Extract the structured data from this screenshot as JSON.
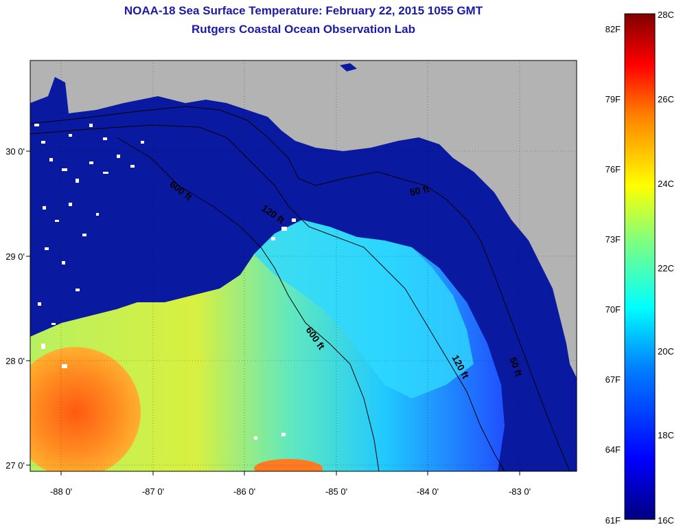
{
  "titles": {
    "line1": "NOAA-18 Sea Surface Temperature:  February 22, 2015 1055 GMT",
    "line2": "Rutgers Coastal Ocean Observation Lab"
  },
  "map": {
    "lon_range": [
      -88.35,
      -82.4
    ],
    "lat_range": [
      26.95,
      30.85
    ],
    "lon_ticks": [
      {
        "value": -88,
        "label": "-88 0'"
      },
      {
        "value": -87,
        "label": "-87 0'"
      },
      {
        "value": -86,
        "label": "-86 0'"
      },
      {
        "value": -85,
        "label": "-85 0'"
      },
      {
        "value": -84,
        "label": "-84 0'"
      },
      {
        "value": -83,
        "label": "-83 0'"
      }
    ],
    "lat_ticks": [
      {
        "value": 30,
        "label": "30 0'"
      },
      {
        "value": 29,
        "label": "29 0'"
      },
      {
        "value": 28,
        "label": "28 0'"
      },
      {
        "value": 27,
        "label": "27 0'"
      }
    ],
    "contour_labels": [
      "600 ft",
      "120 ft",
      "50 ft",
      "600 ft",
      "120 ft",
      "50 ft"
    ],
    "colors": {
      "land": "#b3b3b3",
      "cold_water": "#0a1aa0",
      "cloud": "#ffffff"
    }
  },
  "colorbar": {
    "min_c": 16,
    "max_c": 28,
    "celsius_labels": [
      "28C",
      "26C",
      "24C",
      "22C",
      "20C",
      "18C",
      "16C"
    ],
    "fahrenheit_labels": [
      "82F",
      "79F",
      "76F",
      "73F",
      "70F",
      "67F",
      "64F",
      "61F"
    ],
    "stops": [
      "#000080",
      "#0000ff",
      "#00bfff",
      "#00ffff",
      "#7fff7f",
      "#ffff00",
      "#ff7f00",
      "#ff0000",
      "#800000"
    ]
  }
}
